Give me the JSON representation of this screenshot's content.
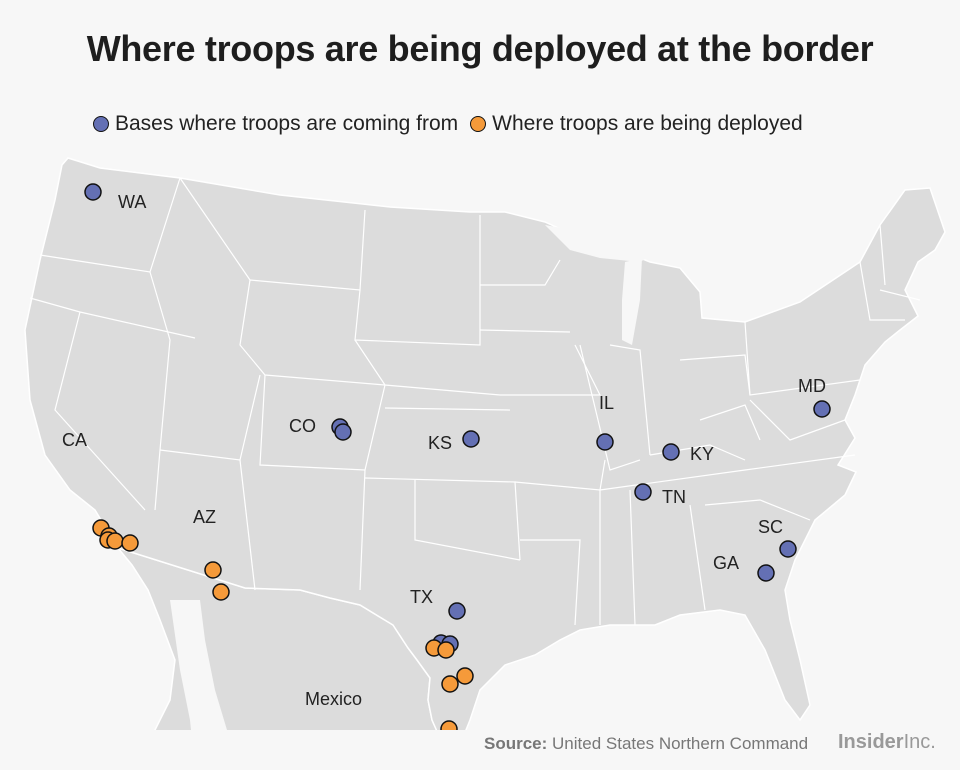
{
  "title": "Where troops are being deployed at the border",
  "legend": {
    "bases": {
      "label": "Bases where troops are coming from",
      "color": "#6470b4"
    },
    "deployed": {
      "label": "Where troops are being deployed",
      "color": "#f59a3a"
    }
  },
  "state_labels": [
    "WA",
    "CA",
    "CO",
    "KS",
    "IL",
    "KY",
    "MD",
    "TN",
    "SC",
    "GA",
    "AZ",
    "TX"
  ],
  "mexico_label": "Mexico",
  "source": {
    "prefix": "Source:",
    "text": "United States Northern Command"
  },
  "brand": {
    "bold": "Insider",
    "light": "Inc."
  },
  "colors": {
    "land": "#dcdcdc",
    "border": "#ffffff",
    "background": "#f7f7f7"
  }
}
